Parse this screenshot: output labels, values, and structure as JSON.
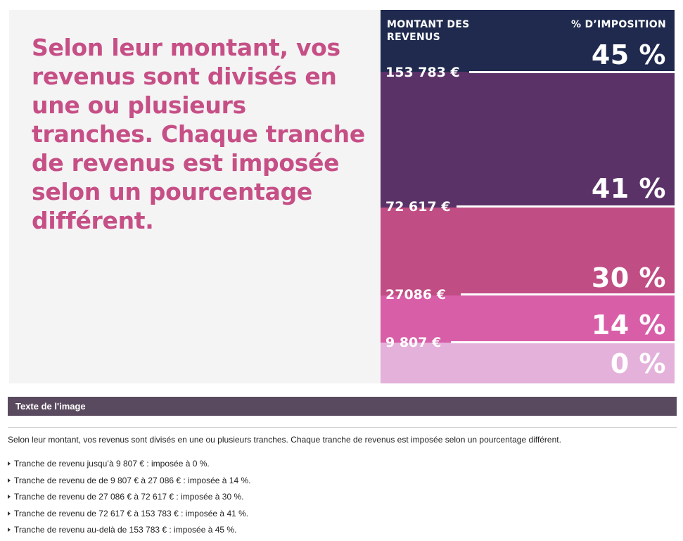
{
  "infographic": {
    "headline": "Selon leur montant, vos revenus sont divisés en une ou plusieurs tranches. Chaque tranche de revenus est imposée selon un pourcentage différent.",
    "column_left": "MONTANT DES REVENUS",
    "column_right": "% D’IMPOSITION",
    "bands": [
      {
        "rate": "45 %",
        "color": "#1f2a4e"
      },
      {
        "rate": "41 %",
        "color": "#5b3268"
      },
      {
        "rate": "30 %",
        "color": "#c04d84"
      },
      {
        "rate": "14 %",
        "color": "#d85ea8"
      },
      {
        "rate": "0 %",
        "color": "#e4b1db"
      }
    ],
    "thresholds": [
      "153 783 €",
      "72 617 €",
      "27086 €",
      "9 807 €"
    ]
  },
  "caption": {
    "title": "Texte de l'image",
    "description": "Selon leur montant, vos revenus sont divisés en une ou plusieurs tranches. Chaque tranche de revenus est imposée selon un pourcentage différent.",
    "items": [
      "Tranche de revenu jusqu’à 9 807 € : imposée à 0 %.",
      "Tranche de revenu de de 9 807 € à 27 086 € : imposée à 14 %.",
      "Tranche de revenu de 27 086 € à 72 617 € : imposée à 30 %.",
      "Tranche de revenu de 72 617 € à 153 783 € : imposée à 41 %.",
      "Tranche de revenu au-delà de 153 783 € : imposée à 45 %."
    ]
  }
}
